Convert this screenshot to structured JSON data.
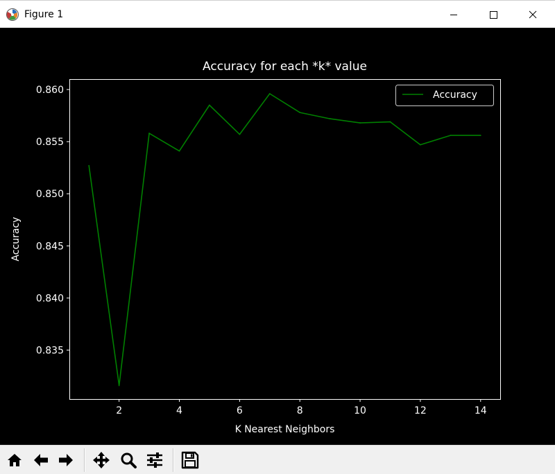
{
  "window": {
    "title": "Figure 1",
    "icons": {
      "app": "matplotlib-icon",
      "minimize": "minimize-icon",
      "maximize": "maximize-icon",
      "close": "close-icon"
    }
  },
  "toolbar": {
    "buttons": [
      "home-icon",
      "back-icon",
      "forward-icon",
      "pan-icon",
      "zoom-icon",
      "configure-subplots-icon",
      "save-icon"
    ]
  },
  "colors": {
    "background": "#000000",
    "line": "#008000",
    "text": "#ffffff"
  },
  "chart_data": {
    "type": "line",
    "title": "Accuracy for each *k* value",
    "xlabel": "K Nearest Neighbors",
    "ylabel": "Accuracy",
    "xlim": [
      0.35,
      14.65
    ],
    "ylim": [
      0.8303,
      0.861
    ],
    "xticks": [
      2,
      4,
      6,
      8,
      10,
      12,
      14
    ],
    "xtick_labels": [
      "2",
      "4",
      "6",
      "8",
      "10",
      "12",
      "14"
    ],
    "yticks": [
      0.835,
      0.84,
      0.845,
      0.85,
      0.855,
      0.86
    ],
    "ytick_labels": [
      "0.835",
      "0.840",
      "0.845",
      "0.850",
      "0.855",
      "0.860"
    ],
    "grid": false,
    "legend_position": "top-right",
    "series": [
      {
        "name": "Accuracy",
        "color": "#008000",
        "x": [
          1,
          2,
          3,
          4,
          5,
          6,
          7,
          8,
          9,
          10,
          11,
          12,
          13,
          14
        ],
        "y": [
          0.8527,
          0.8316,
          0.8558,
          0.8541,
          0.8585,
          0.8557,
          0.8596,
          0.8578,
          0.8572,
          0.8568,
          0.8569,
          0.8547,
          0.8556,
          0.8556
        ]
      }
    ]
  }
}
